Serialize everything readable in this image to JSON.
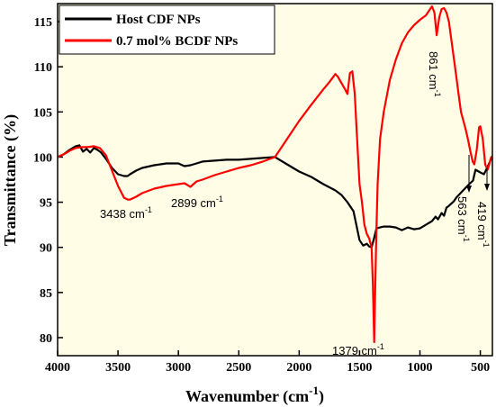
{
  "chart_data": {
    "type": "line",
    "xlabel": "Wavenumber (cm",
    "xlabel_sup": "-1",
    "xlabel_close": ")",
    "ylabel": "Transmittance (%)",
    "xlim": [
      4000,
      400
    ],
    "x_reversed": true,
    "ylim": [
      78,
      117
    ],
    "x_ticks": [
      4000,
      3500,
      3000,
      2500,
      2000,
      1500,
      1000,
      500
    ],
    "y_ticks": [
      80,
      85,
      90,
      95,
      100,
      105,
      110,
      115
    ],
    "legend_position": "top-left",
    "series": [
      {
        "name": "Host CDF NPs",
        "color": "#000000",
        "x": [
          4000,
          3950,
          3900,
          3850,
          3820,
          3790,
          3760,
          3730,
          3700,
          3670,
          3640,
          3600,
          3550,
          3500,
          3450,
          3420,
          3400,
          3350,
          3300,
          3200,
          3100,
          3000,
          2950,
          2900,
          2850,
          2800,
          2700,
          2600,
          2500,
          2400,
          2300,
          2200,
          2100,
          2000,
          1900,
          1800,
          1700,
          1650,
          1600,
          1550,
          1500,
          1470,
          1440,
          1420,
          1400,
          1380,
          1360,
          1330,
          1300,
          1250,
          1200,
          1150,
          1100,
          1050,
          1000,
          950,
          900,
          870,
          850,
          820,
          800,
          780,
          760,
          720,
          700,
          650,
          600,
          560,
          540,
          500,
          470,
          440,
          420,
          405
        ],
        "y": [
          100,
          100.3,
          100.8,
          101.2,
          101.3,
          100.6,
          100.9,
          100.5,
          101.0,
          100.8,
          100.5,
          99.8,
          98.8,
          98.1,
          97.9,
          97.9,
          98.1,
          98.5,
          98.8,
          99.1,
          99.3,
          99.3,
          99.0,
          99.1,
          99.3,
          99.5,
          99.6,
          99.7,
          99.7,
          99.8,
          99.9,
          100.0,
          99.2,
          98.4,
          97.8,
          97.0,
          96.3,
          95.8,
          95.0,
          94.0,
          90.8,
          90.2,
          90.4,
          90.1,
          90.0,
          91.0,
          92.1,
          92.2,
          92.3,
          92.3,
          92.2,
          91.9,
          92.2,
          92.0,
          92.1,
          92.5,
          92.9,
          93.4,
          93.1,
          93.8,
          93.5,
          94.4,
          94.6,
          95.1,
          95.5,
          96.2,
          96.9,
          97.4,
          98.6,
          98.3,
          98.1,
          98.9,
          99.5,
          100.0
        ]
      },
      {
        "name": "0.7 mol% BCDF NPs",
        "color": "#ff0000",
        "x": [
          4000,
          3950,
          3900,
          3850,
          3800,
          3750,
          3700,
          3650,
          3600,
          3550,
          3500,
          3450,
          3420,
          3400,
          3350,
          3300,
          3200,
          3100,
          3000,
          2950,
          2900,
          2850,
          2800,
          2700,
          2600,
          2500,
          2400,
          2300,
          2200,
          2100,
          2000,
          1900,
          1800,
          1750,
          1700,
          1680,
          1650,
          1620,
          1600,
          1580,
          1560,
          1540,
          1520,
          1500,
          1480,
          1460,
          1440,
          1420,
          1400,
          1390,
          1379,
          1370,
          1360,
          1350,
          1330,
          1300,
          1250,
          1200,
          1150,
          1100,
          1050,
          1000,
          950,
          900,
          880,
          861,
          840,
          820,
          800,
          780,
          760,
          740,
          720,
          700,
          680,
          660,
          640,
          620,
          600,
          580,
          563,
          550,
          530,
          510,
          500,
          480,
          460,
          440,
          430,
          419,
          410,
          400
        ],
        "y": [
          100,
          100.3,
          100.7,
          101.0,
          101.1,
          101.1,
          101.2,
          101.0,
          100.2,
          98.5,
          96.8,
          95.5,
          95.3,
          95.3,
          95.6,
          96.0,
          96.5,
          96.8,
          97.0,
          97.1,
          96.7,
          97.3,
          97.5,
          98.0,
          98.4,
          98.8,
          99.1,
          99.5,
          100.0,
          102.0,
          104.0,
          105.8,
          107.5,
          108.3,
          109.2,
          108.9,
          108.2,
          107.5,
          107.0,
          109.3,
          109.5,
          107.0,
          102.0,
          97.0,
          95.0,
          92.5,
          91.5,
          91.0,
          90.0,
          86.0,
          79.5,
          86.0,
          92.0,
          97.0,
          102.0,
          105.0,
          108.5,
          110.8,
          112.6,
          113.8,
          114.6,
          115.2,
          115.7,
          116.7,
          116.0,
          113.5,
          115.5,
          116.4,
          116.5,
          116.0,
          115.0,
          113.0,
          111.0,
          109.0,
          107.0,
          105.0,
          104.0,
          103.0,
          101.8,
          100.5,
          99.5,
          99.2,
          100.8,
          103.3,
          103.4,
          102.0,
          99.2,
          98.6,
          99.0,
          99.6,
          100.0,
          100.0
        ]
      }
    ],
    "annotations": [
      {
        "text": "3438 cm",
        "sup": "-1"
      },
      {
        "text": "2899 cm",
        "sup": "-1"
      },
      {
        "text": "861 cm",
        "sup": "-1"
      },
      {
        "text": "1379 cm",
        "sup": "-1"
      },
      {
        "text": "563 cm",
        "sup": "-1"
      },
      {
        "text": "419 cm",
        "sup": "-1"
      }
    ]
  }
}
